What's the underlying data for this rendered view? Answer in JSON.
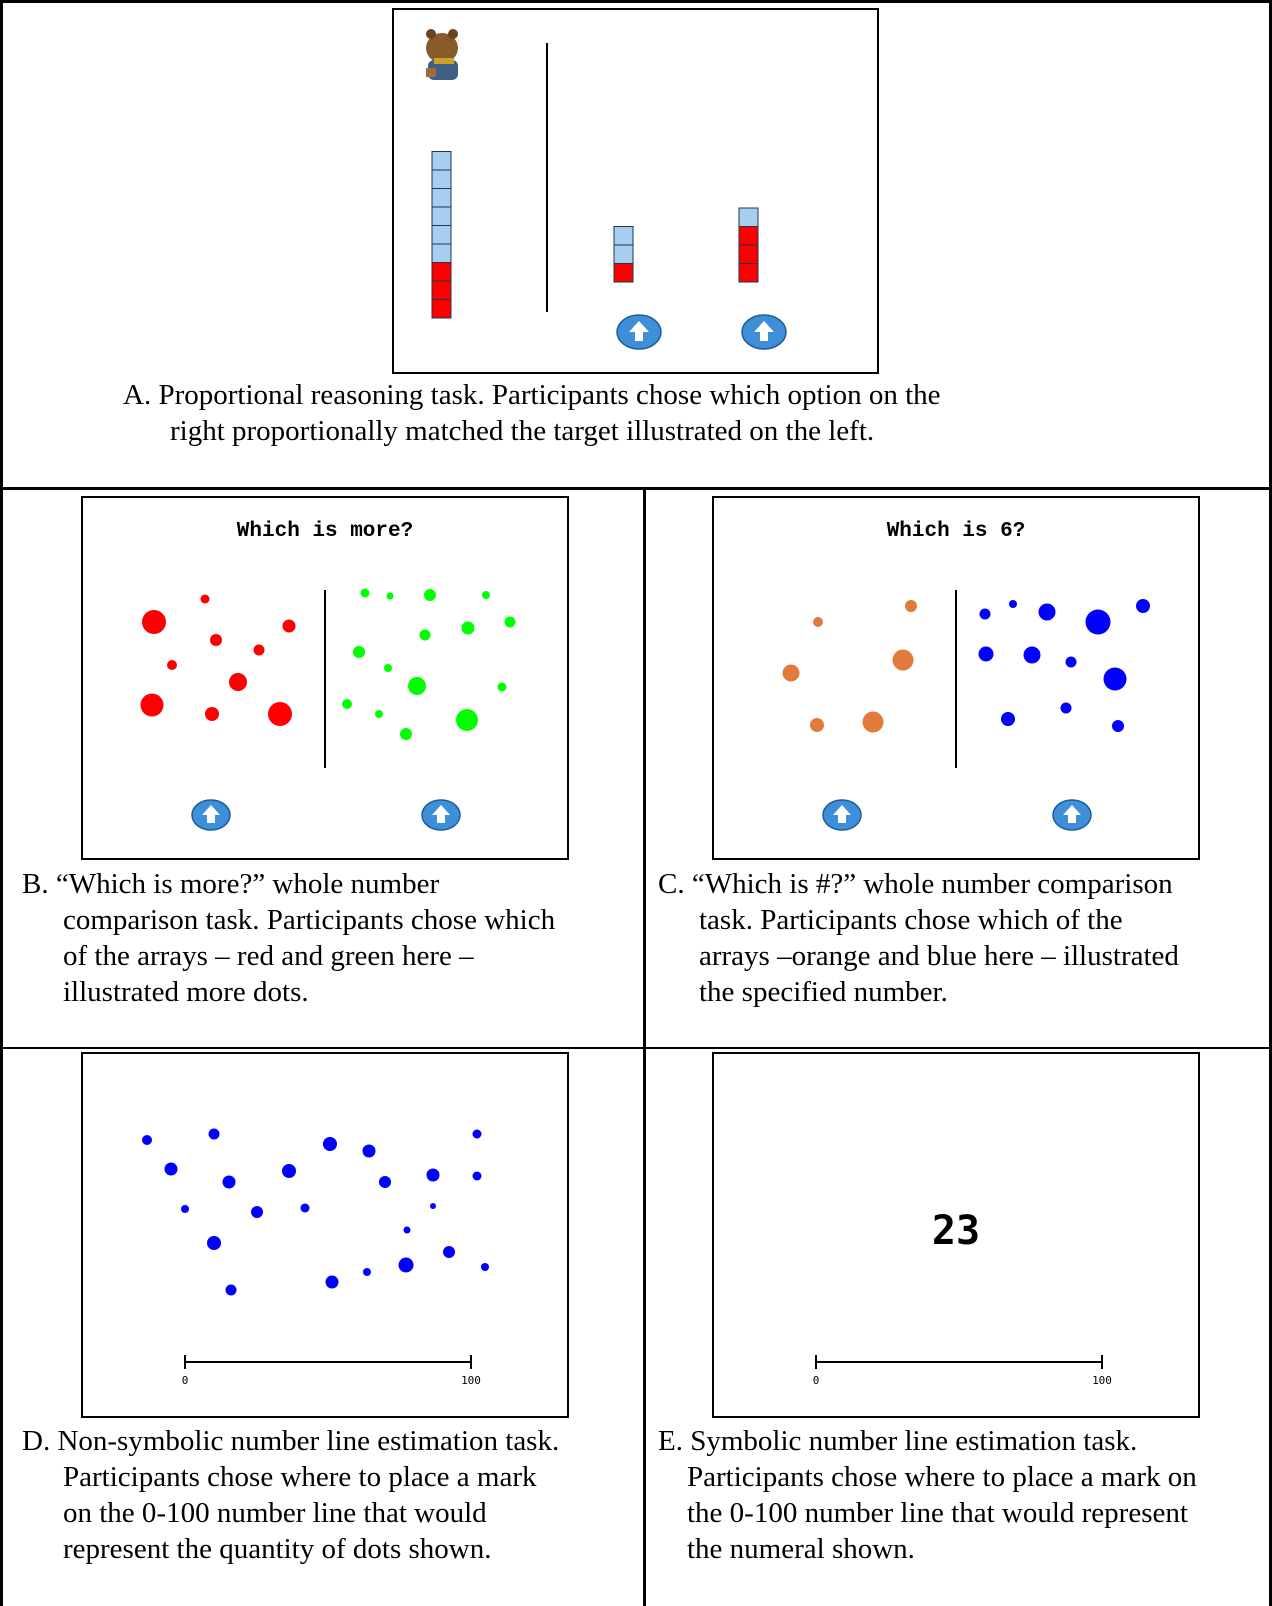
{
  "panel_a": {
    "target_bar": {
      "blue": 6,
      "red": 3
    },
    "option_left": {
      "blue": 2,
      "red": 1
    },
    "option_right": {
      "blue": 1,
      "red": 3
    },
    "caption_lines": [
      "A.  Proportional reasoning task.  Participants chose which option on the",
      "right proportionally matched the target illustrated on the left."
    ]
  },
  "panel_b": {
    "title": "Which is more?",
    "left_dot_color": "#ff0000",
    "right_dot_color": "#00ff00",
    "caption_lines": [
      "B. “Which is more?” whole number",
      "comparison task.  Participants chose which",
      "of the arrays – red and green here –",
      "illustrated more dots."
    ]
  },
  "panel_c": {
    "title": "Which is 6?",
    "left_dot_color": "#e07b3c",
    "right_dot_color": "#0000ff",
    "caption_lines": [
      "C. “Which is #?” whole number comparison",
      "task.  Participants chose which of the",
      "arrays –orange and blue here – illustrated",
      "the specified number."
    ]
  },
  "panel_d": {
    "dot_color": "#0000ff",
    "line_min_label": "0",
    "line_max_label": "100",
    "caption_lines": [
      "D. Non-symbolic number line estimation task.",
      "Participants chose where to place a mark",
      "on the 0-100 number line that would",
      "represent the quantity of dots shown."
    ]
  },
  "panel_e": {
    "numeral": "23",
    "line_min_label": "0",
    "line_max_label": "100",
    "caption_lines": [
      "E. Symbolic number line estimation task.",
      "Participants chose where to place a mark on",
      "the 0-100 number line that would represent",
      "the numeral shown."
    ]
  },
  "colors": {
    "bar_blue": "#a7cdf0",
    "bar_red": "#ff0000",
    "button_blue": "#3e8fd8"
  }
}
